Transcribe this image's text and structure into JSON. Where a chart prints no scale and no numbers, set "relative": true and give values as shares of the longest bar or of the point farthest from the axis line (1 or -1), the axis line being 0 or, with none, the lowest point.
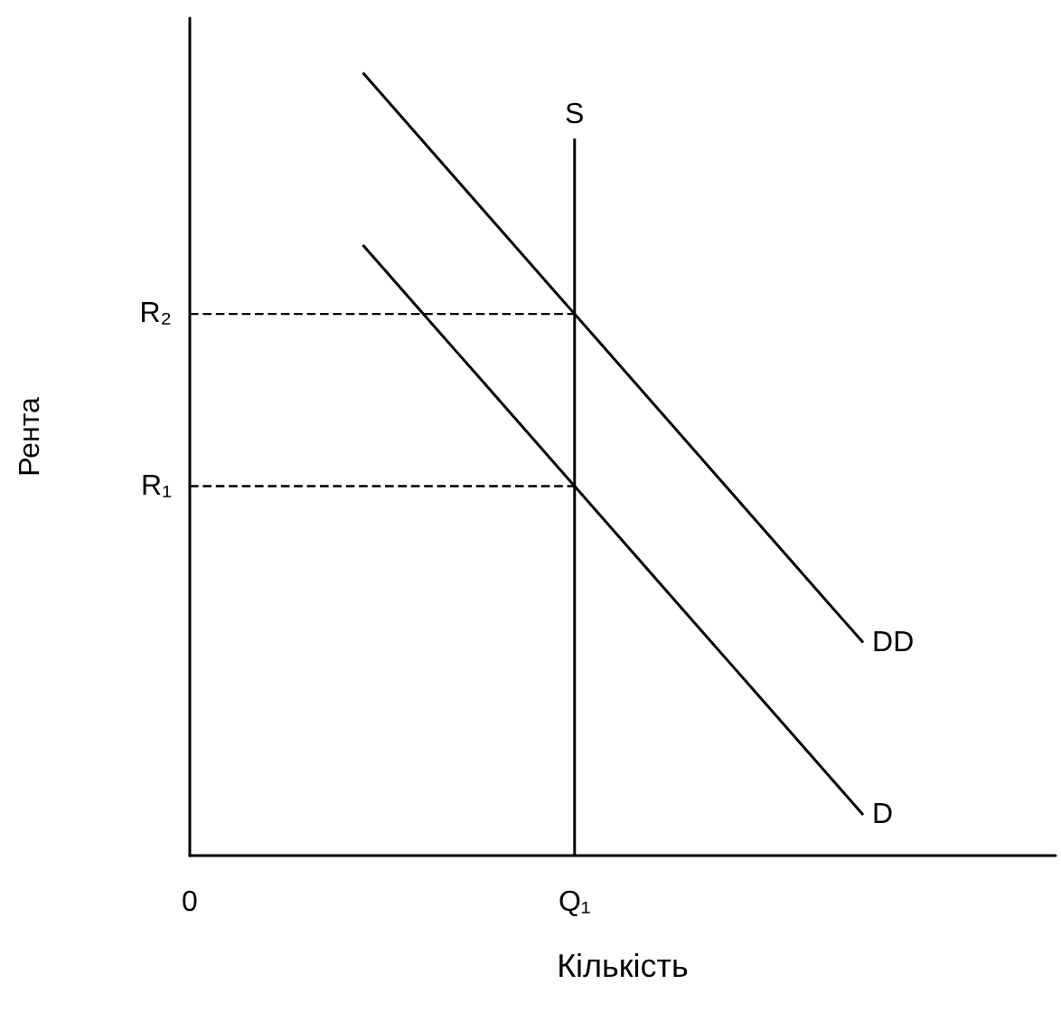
{
  "chart_data": {
    "type": "line",
    "relative": true,
    "xlabel": "Кількість",
    "ylabel": "Рента",
    "categories": [
      "0",
      null,
      null,
      null,
      null,
      null,
      null,
      null,
      null,
      null,
      null,
      null,
      null,
      null,
      null,
      null,
      null,
      null,
      null,
      null,
      "Q₁",
      null,
      null,
      null,
      null,
      null,
      null,
      null,
      null,
      null,
      null,
      null,
      null,
      null,
      null,
      null,
      null,
      null,
      null,
      null,
      null
    ],
    "series": [
      {
        "name": "S",
        "color": "#000000",
        "x": [
          "Q₁",
          "Q₁"
        ],
        "values": [
          0,
          0.916
        ]
      },
      {
        "name": "DD",
        "color": "#000000",
        "values": [
          null,
          null,
          null,
          null,
          null,
          null,
          null,
          null,
          null,
          1.0,
          0.972,
          0.944,
          0.916,
          0.888,
          0.86,
          0.832,
          0.804,
          0.776,
          0.748,
          0.72,
          0.692,
          0.664,
          0.636,
          0.608,
          0.58,
          0.552,
          0.524,
          0.496,
          0.468,
          0.44,
          0.412,
          0.384,
          0.356,
          0.328,
          0.3,
          0.272,
          null,
          null,
          null,
          null,
          null
        ]
      },
      {
        "name": "D",
        "color": "#000000",
        "values": [
          null,
          null,
          null,
          null,
          null,
          null,
          null,
          null,
          null,
          0.78,
          0.752,
          0.724,
          0.696,
          0.668,
          0.64,
          0.612,
          0.584,
          0.556,
          0.528,
          0.5,
          0.472,
          0.444,
          0.416,
          0.388,
          0.36,
          0.332,
          0.304,
          0.276,
          0.248,
          0.22,
          0.192,
          0.164,
          0.136,
          0.108,
          0.08,
          0.052,
          null,
          null,
          null,
          null,
          null
        ]
      },
      {
        "color": "#000000",
        "line_style": "dashed",
        "x": [
          "0",
          "Q₁"
        ],
        "values": [
          0.692,
          0.692
        ]
      },
      {
        "color": "#000000",
        "line_style": "dashed",
        "x": [
          "0",
          "Q₁"
        ],
        "values": [
          0.472,
          0.472
        ]
      }
    ],
    "annotations": [
      {
        "text": "R₂",
        "x": "0",
        "y": 0.692
      },
      {
        "text": "R₁",
        "x": "0",
        "y": 0.472
      }
    ],
    "legend": false,
    "grid": false,
    "marker": "none",
    "line_style": "solid"
  }
}
